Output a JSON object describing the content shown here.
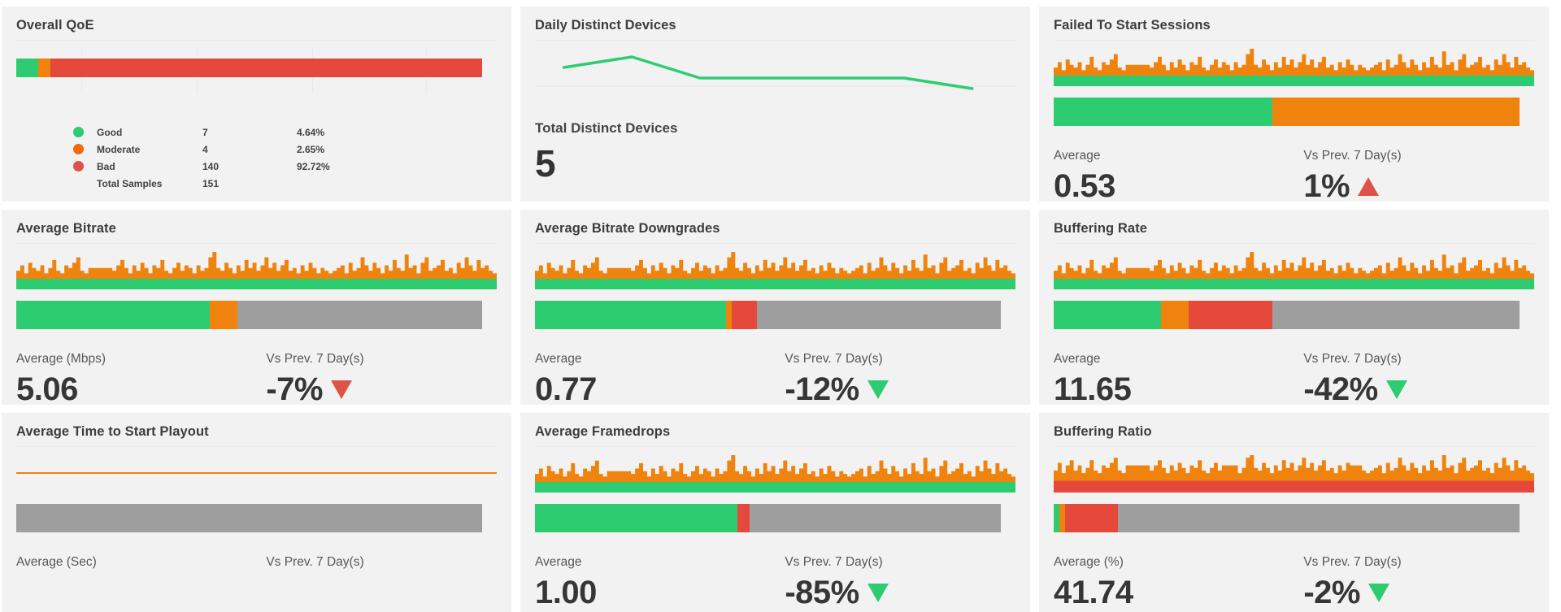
{
  "colors": {
    "green": "#2ecc71",
    "orange": "#f0830d",
    "red": "#e5493c",
    "gray": "#9e9e9e",
    "trend_up_bad_red": "#df5347",
    "trend_down_bad_red": "#df5347",
    "trend_down_good_green": "#2ecc71",
    "panel_bg": "#f2f2f2",
    "page_bg": "#ffffff",
    "title_text": "#3d3d3d",
    "label_text": "#575757",
    "value_text": "#363636",
    "grid_line": "#e9e9e9"
  },
  "panels": [
    {
      "title": "Overall QoE",
      "legend": [
        {
          "label": "Good",
          "count": "7",
          "pct": "4.64%",
          "color": "#2ecc71"
        },
        {
          "label": "Moderate",
          "count": "4",
          "pct": "2.65%",
          "color": "#f2690f"
        },
        {
          "label": "Bad",
          "count": "140",
          "pct": "92.72%",
          "color": "#e0514a"
        },
        {
          "label": "Total Samples",
          "count": "151",
          "pct": "",
          "color": ""
        }
      ]
    },
    {
      "title": "Daily Distinct Devices",
      "total_label": "Total Distinct Devices",
      "total_value": "5"
    },
    {
      "title": "Failed To Start Sessions",
      "avg_label": "Average",
      "avg_value": "0.53",
      "vs_label": "Vs Prev. 7 Day(s)",
      "vs_value": "1%",
      "trend": {
        "dir": "up",
        "color": "#df5347"
      }
    },
    {
      "title": "Average Bitrate",
      "avg_label": "Average (Mbps)",
      "avg_value": "5.06",
      "vs_label": "Vs Prev. 7 Day(s)",
      "vs_value": "-7%",
      "trend": {
        "dir": "down",
        "color": "#df5347"
      }
    },
    {
      "title": "Average Bitrate Downgrades",
      "avg_label": "Average",
      "avg_value": "0.77",
      "vs_label": "Vs Prev. 7 Day(s)",
      "vs_value": "-12%",
      "trend": {
        "dir": "down",
        "color": "#2ecc71"
      }
    },
    {
      "title": "Buffering Rate",
      "avg_label": "Average",
      "avg_value": "11.65",
      "vs_label": "Vs Prev. 7 Day(s)",
      "vs_value": "-42%",
      "trend": {
        "dir": "down",
        "color": "#2ecc71"
      }
    },
    {
      "title": "Average Time to Start Playout",
      "avg_label": "Average (Sec)",
      "avg_value": "",
      "vs_label": "Vs Prev. 7 Day(s)",
      "vs_value": "",
      "trend": {
        "dir": "",
        "color": ""
      }
    },
    {
      "title": "Average Framedrops",
      "avg_label": "Average",
      "avg_value": "1.00",
      "vs_label": "Vs Prev. 7 Day(s)",
      "vs_value": "-85%",
      "trend": {
        "dir": "down",
        "color": "#2ecc71"
      }
    },
    {
      "title": "Buffering Ratio",
      "avg_label": "Average (%)",
      "avg_value": "41.74",
      "vs_label": "Vs Prev. 7 Day(s)",
      "vs_value": "-2%",
      "trend": {
        "dir": "down",
        "color": "#2ecc71"
      }
    }
  ],
  "chart_data": [
    {
      "type": "bar",
      "variant": "stacked-horizontal",
      "title": "Overall QoE",
      "categories": [
        "Good",
        "Moderate",
        "Bad"
      ],
      "counts": [
        7,
        4,
        140
      ],
      "percentages": [
        4.64,
        2.65,
        92.72
      ],
      "total_samples": 151,
      "segment_colors": [
        "#2ecc71",
        "#f0830d",
        "#e5493c"
      ]
    },
    {
      "type": "line",
      "title": "Daily Distinct Devices",
      "x": [
        1,
        2,
        3,
        4,
        5,
        6,
        7
      ],
      "values": [
        3,
        4,
        2,
        2,
        2,
        2,
        1
      ],
      "total_distinct_devices": 5,
      "line_color": "#2ecc71",
      "ylim": [
        0,
        5
      ],
      "grid": "single-horizontal-line"
    },
    {
      "type": "area",
      "title": "Failed To Start Sessions",
      "sparkline": {
        "pattern": "pattern_a",
        "base_color": "#2ecc71",
        "spike_color": "#f0830d",
        "base_frac": 0.27
      },
      "progress": [
        [
          "#2ecc71",
          47
        ],
        [
          "#f0830d",
          53
        ]
      ],
      "average": 0.53,
      "vs_prev_7d_pct": 1
    },
    {
      "type": "area",
      "title": "Average Bitrate",
      "sparkline": {
        "pattern": "pattern_a",
        "base_color": "#2ecc71",
        "spike_color": "#f0830d",
        "base_frac": 0.27
      },
      "progress": [
        [
          "#2ecc71",
          41.5
        ],
        [
          "#f0830d",
          6
        ],
        [
          "#9e9e9e",
          52.5
        ]
      ],
      "average_mbps": 5.06,
      "vs_prev_7d_pct": -7
    },
    {
      "type": "area",
      "title": "Average Bitrate Downgrades",
      "sparkline": {
        "pattern": "pattern_a",
        "base_color": "#2ecc71",
        "spike_color": "#f0830d",
        "base_frac": 0.27
      },
      "progress": [
        [
          "#2ecc71",
          41
        ],
        [
          "#f0830d",
          1.2
        ],
        [
          "#e5493c",
          5.5
        ],
        [
          "#9e9e9e",
          52.3
        ]
      ],
      "average": 0.77,
      "vs_prev_7d_pct": -12
    },
    {
      "type": "area",
      "title": "Buffering Rate",
      "sparkline": {
        "pattern": "pattern_a",
        "base_color": "#2ecc71",
        "spike_color": "#f0830d",
        "base_frac": 0.27
      },
      "progress": [
        [
          "#2ecc71",
          23
        ],
        [
          "#f0830d",
          6
        ],
        [
          "#e5493c",
          18
        ],
        [
          "#9e9e9e",
          53
        ]
      ],
      "average": 11.65,
      "vs_prev_7d_pct": -42
    },
    {
      "type": "line",
      "title": "Average Time to Start Playout",
      "sparkline": {
        "pattern": "flat",
        "line_color": "#f0830d"
      },
      "progress": [
        [
          "#9e9e9e",
          100
        ]
      ],
      "average_sec": null,
      "vs_prev_7d_pct": null
    },
    {
      "type": "area",
      "title": "Average Framedrops",
      "sparkline": {
        "pattern": "pattern_a",
        "base_color": "#2ecc71",
        "spike_color": "#f0830d",
        "base_frac": 0.27
      },
      "progress": [
        [
          "#2ecc71",
          43.5
        ],
        [
          "#e5493c",
          2.6
        ],
        [
          "#9e9e9e",
          53.9
        ]
      ],
      "average": 1.0,
      "vs_prev_7d_pct": -85
    },
    {
      "type": "area",
      "title": "Buffering Ratio",
      "sparkline": {
        "pattern": "pattern_b",
        "base_color": "#e5493c",
        "spike_color": "#f0830d",
        "base_frac": 0.3
      },
      "progress": [
        [
          "#2ecc71",
          1.2
        ],
        [
          "#f0830d",
          1.2
        ],
        [
          "#e5493c",
          11.4
        ],
        [
          "#9e9e9e",
          86.2
        ]
      ],
      "average_pct": 41.74,
      "vs_prev_7d_pct": -2
    }
  ],
  "spark_patterns": {
    "pattern_a": [
      3,
      5,
      2,
      6,
      4,
      3,
      5,
      2,
      4,
      7,
      3,
      2,
      5,
      4,
      6,
      8,
      3,
      2,
      4,
      4,
      4,
      4,
      4,
      4,
      3,
      5,
      7,
      4,
      2,
      5,
      3,
      6,
      4,
      2,
      5,
      4,
      7,
      3,
      2,
      4,
      6,
      3,
      5,
      4,
      2,
      5,
      3,
      4,
      8,
      10,
      4,
      3,
      6,
      4,
      2,
      5,
      3,
      7,
      4,
      6,
      3,
      5,
      8,
      4,
      6,
      3,
      5,
      7,
      3,
      4,
      2,
      5,
      3,
      6,
      4,
      2,
      4,
      3,
      2,
      3,
      4,
      5,
      2,
      6,
      3,
      4,
      8,
      5,
      3,
      6,
      4,
      2,
      5,
      3,
      7,
      4,
      3,
      9,
      4,
      5,
      2,
      6,
      8,
      3,
      4,
      5,
      7,
      3,
      4,
      2,
      6,
      4,
      8,
      5,
      3,
      7,
      4,
      5,
      3,
      2
    ],
    "pattern_b": [
      4,
      7,
      3,
      6,
      8,
      4,
      6,
      3,
      5,
      8,
      4,
      3,
      6,
      5,
      7,
      9,
      4,
      3,
      6,
      6,
      6,
      6,
      6,
      6,
      4,
      6,
      8,
      5,
      3,
      6,
      4,
      7,
      5,
      3,
      6,
      5,
      8,
      4,
      3,
      5,
      7,
      4,
      6,
      6,
      6,
      6,
      3,
      5,
      9,
      10,
      5,
      4,
      7,
      5,
      3,
      6,
      4,
      8,
      5,
      7,
      4,
      6,
      9,
      5,
      7,
      4,
      6,
      8,
      4,
      5,
      3,
      6,
      4,
      7,
      6,
      6,
      6,
      4,
      3,
      4,
      5,
      6,
      3,
      7,
      4,
      5,
      9,
      6,
      4,
      7,
      5,
      3,
      6,
      4,
      8,
      5,
      4,
      10,
      5,
      6,
      3,
      7,
      9,
      4,
      5,
      6,
      8,
      4,
      5,
      3,
      7,
      5,
      9,
      6,
      4,
      8,
      5,
      6,
      4,
      3
    ]
  }
}
